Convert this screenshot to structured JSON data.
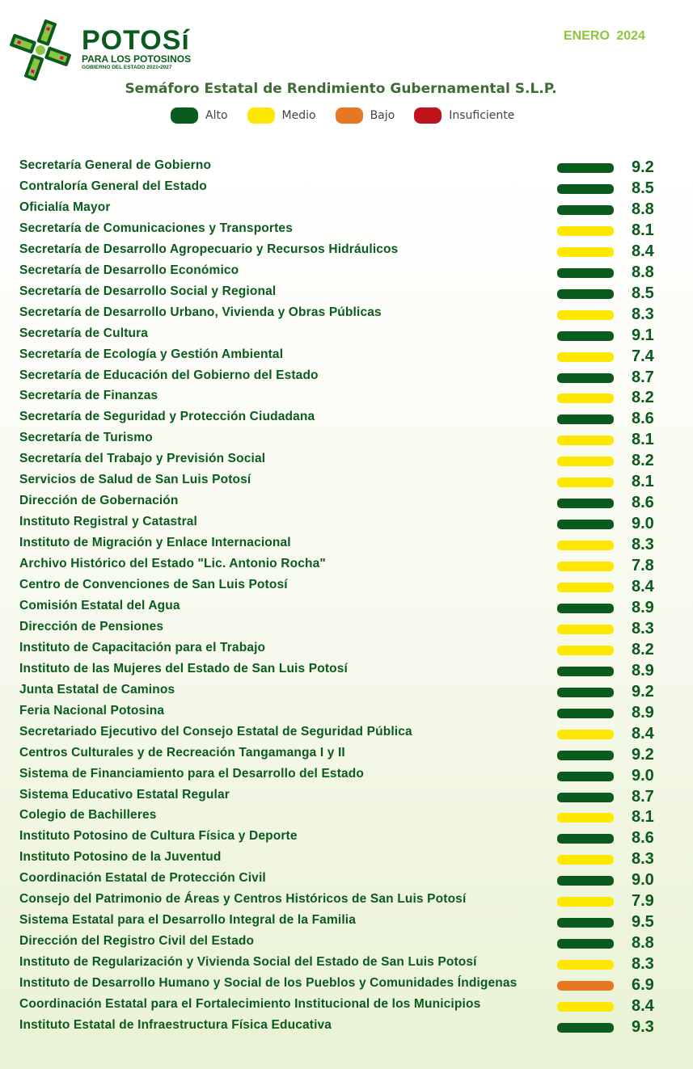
{
  "header": {
    "brand_logo_text": "POTOSÍ PARA LOS POTOSINOS GOBIERNO DEL ESTADO 2021-2027",
    "brand_title": "POTOSí",
    "brand_subtitle": "PARA LOS POTOSINOS",
    "brand_tagline": "GOBIERNO DEL ESTADO 2021▪2027",
    "date": "ENERO 2024",
    "title": "Semáforo Estatal de Rendimiento Gubernamental S.L.P."
  },
  "colors": {
    "alto": "#0b5a1e",
    "medio": "#ffe800",
    "bajo": "#e87722",
    "insuficiente": "#c0141c",
    "text": "#0b5a1e",
    "date": "#8cc63f"
  },
  "legend": [
    {
      "label": "Alto",
      "level": "alto"
    },
    {
      "label": "Medio",
      "level": "medio"
    },
    {
      "label": "Bajo",
      "level": "bajo"
    },
    {
      "label": "Insuficiente",
      "level": "insuficiente"
    }
  ],
  "rows": [
    {
      "name": "Secretaría General de Gobierno",
      "value": "9.2",
      "level": "alto"
    },
    {
      "name": "Contraloría General del Estado",
      "value": "8.5",
      "level": "alto"
    },
    {
      "name": "Oficialía Mayor",
      "value": "8.8",
      "level": "alto"
    },
    {
      "name": "Secretaría de Comunicaciones y Transportes",
      "value": "8.1",
      "level": "medio"
    },
    {
      "name": "Secretaría de Desarrollo Agropecuario y Recursos Hidráulicos",
      "value": "8.4",
      "level": "medio"
    },
    {
      "name": "Secretaría de Desarrollo Económico",
      "value": "8.8",
      "level": "alto"
    },
    {
      "name": "Secretaría de Desarrollo Social y Regional",
      "value": "8.5",
      "level": "alto"
    },
    {
      "name": "Secretaría de Desarrollo Urbano, Vivienda y Obras Públicas",
      "value": "8.3",
      "level": "medio"
    },
    {
      "name": "Secretaría de Cultura",
      "value": "9.1",
      "level": "alto"
    },
    {
      "name": "Secretaría de Ecología y Gestión Ambiental",
      "value": "7.4",
      "level": "medio"
    },
    {
      "name": "Secretaría de Educación del Gobierno del Estado",
      "value": "8.7",
      "level": "alto"
    },
    {
      "name": "Secretaría de Finanzas",
      "value": "8.2",
      "level": "medio"
    },
    {
      "name": "Secretaría de Seguridad y Protección Ciudadana",
      "value": "8.6",
      "level": "alto"
    },
    {
      "name": "Secretaría de Turismo",
      "value": "8.1",
      "level": "medio"
    },
    {
      "name": "Secretaría del Trabajo y Previsión Social",
      "value": "8.2",
      "level": "medio"
    },
    {
      "name": "Servicios de Salud de San Luis Potosí",
      "value": "8.1",
      "level": "medio"
    },
    {
      "name": "Dirección de Gobernación",
      "value": "8.6",
      "level": "alto"
    },
    {
      "name": "Instituto Registral y Catastral",
      "value": "9.0",
      "level": "alto"
    },
    {
      "name": "Instituto de Migración y Enlace Internacional",
      "value": "8.3",
      "level": "medio"
    },
    {
      "name": "Archivo Histórico del Estado \"Lic. Antonio Rocha\"",
      "value": "7.8",
      "level": "medio"
    },
    {
      "name": "Centro de Convenciones de San Luis Potosí",
      "value": "8.4",
      "level": "medio"
    },
    {
      "name": "Comisión Estatal del Agua",
      "value": "8.9",
      "level": "alto"
    },
    {
      "name": "Dirección de Pensiones",
      "value": "8.3",
      "level": "medio"
    },
    {
      "name": "Instituto de Capacitación para el Trabajo",
      "value": "8.2",
      "level": "medio"
    },
    {
      "name": "Instituto de las Mujeres del Estado de San Luis Potosí",
      "value": "8.9",
      "level": "alto"
    },
    {
      "name": "Junta Estatal de Caminos",
      "value": "9.2",
      "level": "alto"
    },
    {
      "name": "Feria Nacional Potosina",
      "value": "8.9",
      "level": "alto"
    },
    {
      "name": "Secretariado Ejecutivo del Consejo Estatal de Seguridad Pública",
      "value": "8.4",
      "level": "medio"
    },
    {
      "name": "Centros Culturales y de Recreación Tangamanga I y II",
      "value": "9.2",
      "level": "alto"
    },
    {
      "name": "Sistema de Financiamiento para el Desarrollo del Estado",
      "value": "9.0",
      "level": "alto"
    },
    {
      "name": "Sistema Educativo Estatal Regular",
      "value": "8.7",
      "level": "alto"
    },
    {
      "name": "Colegio de Bachilleres",
      "value": "8.1",
      "level": "medio"
    },
    {
      "name": "Instituto Potosino de Cultura Física y Deporte",
      "value": "8.6",
      "level": "alto"
    },
    {
      "name": "Instituto Potosino de la Juventud",
      "value": "8.3",
      "level": "medio"
    },
    {
      "name": "Coordinación Estatal de Protección Civil",
      "value": "9.0",
      "level": "alto"
    },
    {
      "name": "Consejo del Patrimonio de Áreas y Centros Históricos de San Luis Potosí",
      "value": "7.9",
      "level": "medio"
    },
    {
      "name": "Sistema Estatal para el Desarrollo Integral de la Familia",
      "value": "9.5",
      "level": "alto"
    },
    {
      "name": "Dirección del Registro Civil del Estado",
      "value": "8.8",
      "level": "alto"
    },
    {
      "name": "Instituto de Regularización y Vivienda Social del Estado de San Luis Potosí",
      "value": "8.3",
      "level": "medio"
    },
    {
      "name": "Instituto de Desarrollo Humano y Social de los Pueblos y Comunidades Índigenas",
      "value": "6.9",
      "level": "bajo"
    },
    {
      "name": "Coordinación Estatal para el Fortalecimiento Institucional de los Municipios",
      "value": "8.4",
      "level": "medio"
    },
    {
      "name": "Instituto Estatal de Infraestructura Física Educativa",
      "value": "9.3",
      "level": "alto"
    }
  ]
}
